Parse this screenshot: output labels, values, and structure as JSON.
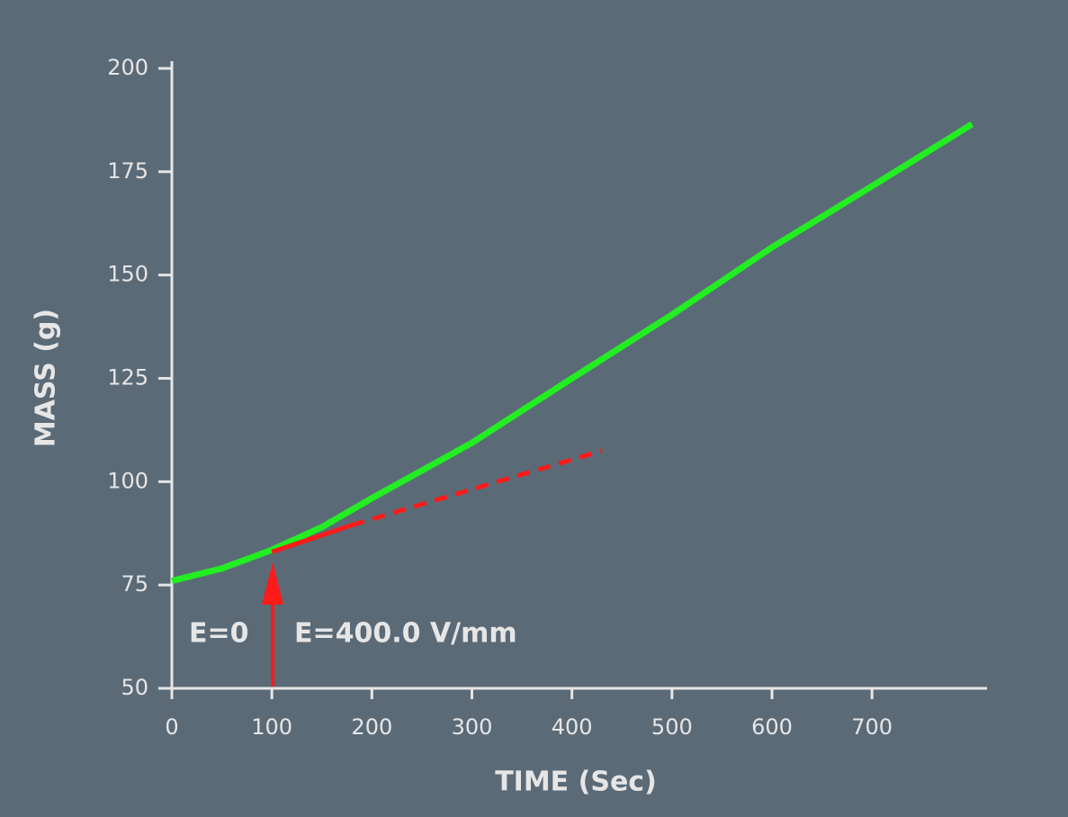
{
  "chart_data": {
    "type": "line",
    "x_label": "TIME (Sec)",
    "y_label": "MASS (g)",
    "annotations": [
      "E=0",
      "E=400.0 V/mm"
    ],
    "xlim": [
      0,
      815
    ],
    "ylim": [
      50,
      200
    ],
    "xticks": [
      0,
      100,
      200,
      300,
      400,
      500,
      600,
      700
    ],
    "yticks": [
      50,
      75,
      100,
      125,
      150,
      175,
      200
    ],
    "series": [
      {
        "color": "#22ee22",
        "x": [
          0,
          50,
          100,
          150,
          200,
          300,
          400,
          500,
          600,
          700,
          800
        ],
        "values": [
          76,
          79,
          83.5,
          89,
          96,
          109.4,
          125,
          140.4,
          156.7,
          171.5,
          186.5
        ]
      },
      {
        "color": "#ff1a1a",
        "x": [
          100,
          180
        ],
        "values": [
          83,
          89.5
        ]
      },
      {
        "color": "#ff1a1a",
        "dash": true,
        "x": [
          180,
          430
        ],
        "values": [
          89.5,
          107.5
        ]
      }
    ]
  }
}
